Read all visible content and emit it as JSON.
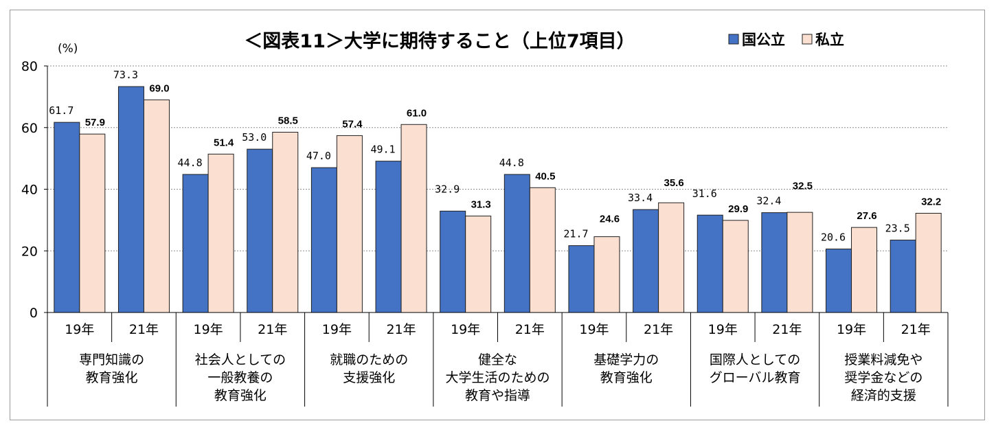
{
  "chart_data": {
    "type": "bar",
    "title": "＜図表11＞大学に期待すること（上位7項目）",
    "ylabel": "(%)",
    "ylim": [
      0,
      80
    ],
    "yticks": [
      0,
      20,
      40,
      60,
      80
    ],
    "grid": true,
    "legend_position": "top-right",
    "colors": {
      "national": "#4472c4",
      "private": "#fbe0d2",
      "bar_edge": "#1f1f1f",
      "grid": "#8c8c8c"
    },
    "groups": [
      {
        "name_lines": [
          "専門知識の",
          "教育強化"
        ]
      },
      {
        "name_lines": [
          "社会人としての",
          "一般教養の",
          "教育強化"
        ]
      },
      {
        "name_lines": [
          "就職のための",
          "支援強化"
        ]
      },
      {
        "name_lines": [
          "健全な",
          "大学生活のための",
          "教育や指導"
        ]
      },
      {
        "name_lines": [
          "基礎学力の",
          "教育強化"
        ]
      },
      {
        "name_lines": [
          "国際人としての",
          "グローバル教育"
        ]
      },
      {
        "name_lines": [
          "授業料減免や",
          "奨学金などの",
          "経済的支援"
        ]
      }
    ],
    "years": [
      "19年",
      "21年"
    ],
    "series": [
      {
        "name": "国公立",
        "values": [
          [
            61.7,
            73.3
          ],
          [
            44.8,
            53.0
          ],
          [
            47.0,
            49.1
          ],
          [
            32.9,
            44.8
          ],
          [
            21.7,
            33.4
          ],
          [
            31.6,
            32.4
          ],
          [
            20.6,
            23.5
          ]
        ],
        "labels": [
          [
            "61.7",
            "73.3"
          ],
          [
            "44.8",
            "53.0"
          ],
          [
            "47.0",
            "49.1"
          ],
          [
            "32.9",
            "44.8"
          ],
          [
            "21.7",
            "33.4"
          ],
          [
            "31.6",
            "32.4"
          ],
          [
            "20.6",
            "23.5"
          ]
        ]
      },
      {
        "name": "私立",
        "values": [
          [
            57.9,
            69.0
          ],
          [
            51.4,
            58.5
          ],
          [
            57.4,
            61.0
          ],
          [
            31.3,
            40.5
          ],
          [
            24.6,
            35.6
          ],
          [
            29.9,
            32.5
          ],
          [
            27.6,
            32.2
          ]
        ],
        "labels": [
          [
            "57.9",
            "69.0"
          ],
          [
            "51.4",
            "58.5"
          ],
          [
            "57.4",
            "61.0"
          ],
          [
            "31.3",
            "40.5"
          ],
          [
            "24.6",
            "35.6"
          ],
          [
            "29.9",
            "32.5"
          ],
          [
            "27.6",
            "32.2"
          ]
        ]
      }
    ]
  }
}
